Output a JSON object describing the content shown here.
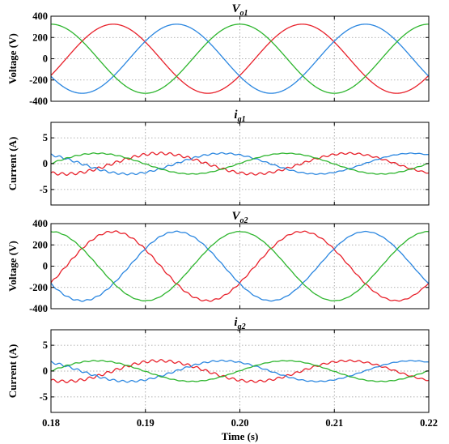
{
  "figure": {
    "xlabel": "Time (s)",
    "xticks": [
      "0.18",
      "0.19",
      "0.20",
      "0.21",
      "0.22"
    ],
    "colors": {
      "phase_a": "#e8202a",
      "phase_b": "#2a86e0",
      "phase_c": "#2db52d"
    }
  },
  "chart_data": [
    {
      "type": "line",
      "title_main": "V",
      "title_sub": "o1",
      "ylabel": "Voltage (V)",
      "xlim": [
        0.18,
        0.22
      ],
      "ylim": [
        -400,
        400
      ],
      "yticks": [
        400,
        200,
        0,
        -200,
        -400
      ],
      "grid": true,
      "ripple": 0,
      "series": [
        {
          "color_key": "phase_a",
          "amplitude": 325,
          "frequency_hz": 50,
          "peak_times": [
            0.1866,
            0.2066
          ]
        },
        {
          "color_key": "phase_b",
          "amplitude": 325,
          "frequency_hz": 50,
          "peak_times": [
            0.1933,
            0.2133
          ]
        },
        {
          "color_key": "phase_c",
          "amplitude": 325,
          "frequency_hz": 50,
          "peak_times": [
            0.18,
            0.2,
            0.22
          ]
        }
      ]
    },
    {
      "type": "line",
      "title_main": "i",
      "title_sub": "g1",
      "ylabel": "Current (A)",
      "xlim": [
        0.18,
        0.22
      ],
      "ylim": [
        -8,
        8
      ],
      "yticks": [
        5,
        0,
        -5
      ],
      "grid": true,
      "ripple": 0.25,
      "series": [
        {
          "color_key": "phase_a",
          "amplitude": 2,
          "frequency_hz": 50,
          "peak_times": [
            0.1915,
            0.2115
          ]
        },
        {
          "color_key": "phase_b",
          "amplitude": 2,
          "frequency_hz": 50,
          "peak_times": [
            0.1782,
            0.1982,
            0.2182
          ]
        },
        {
          "color_key": "phase_c",
          "amplitude": 2,
          "frequency_hz": 50,
          "peak_times": [
            0.1849,
            0.2049
          ]
        }
      ]
    },
    {
      "type": "line",
      "title_main": "V",
      "title_sub": "o2",
      "ylabel": "Voltage (V)",
      "xlim": [
        0.18,
        0.22
      ],
      "ylim": [
        -400,
        400
      ],
      "yticks": [
        400,
        200,
        0,
        -200,
        -400
      ],
      "grid": true,
      "ripple": 8,
      "series": [
        {
          "color_key": "phase_a",
          "amplitude": 325,
          "frequency_hz": 50,
          "peak_times": [
            0.1866,
            0.2066
          ]
        },
        {
          "color_key": "phase_b",
          "amplitude": 325,
          "frequency_hz": 50,
          "peak_times": [
            0.1933,
            0.2133
          ]
        },
        {
          "color_key": "phase_c",
          "amplitude": 325,
          "frequency_hz": 50,
          "peak_times": [
            0.18,
            0.2,
            0.22
          ]
        }
      ]
    },
    {
      "type": "line",
      "title_main": "i",
      "title_sub": "g2",
      "ylabel": "Current (A)",
      "xlim": [
        0.18,
        0.22
      ],
      "ylim": [
        -8,
        8
      ],
      "yticks": [
        5,
        0,
        -5
      ],
      "grid": true,
      "ripple": 0.25,
      "series": [
        {
          "color_key": "phase_a",
          "amplitude": 2,
          "frequency_hz": 50,
          "peak_times": [
            0.1915,
            0.2115
          ]
        },
        {
          "color_key": "phase_b",
          "amplitude": 2,
          "frequency_hz": 50,
          "peak_times": [
            0.1782,
            0.1982,
            0.2182
          ]
        },
        {
          "color_key": "phase_c",
          "amplitude": 2,
          "frequency_hz": 50,
          "peak_times": [
            0.1849,
            0.2049
          ]
        }
      ]
    }
  ]
}
